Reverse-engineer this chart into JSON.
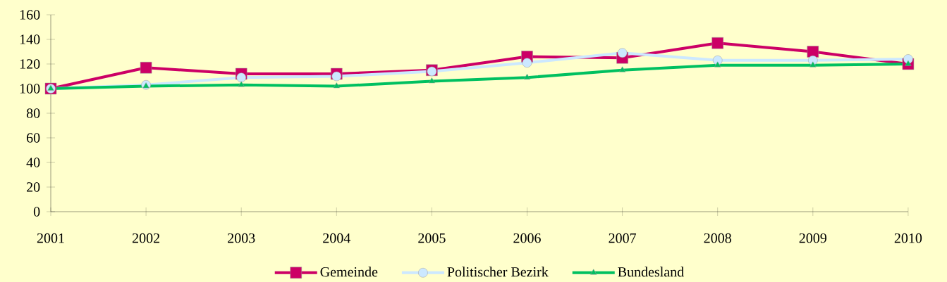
{
  "chart_data": {
    "type": "line",
    "categories": [
      "2001",
      "2002",
      "2003",
      "2004",
      "2005",
      "2006",
      "2007",
      "2008",
      "2009",
      "2010"
    ],
    "series": [
      {
        "name": "Gemeinde",
        "color": "#cc0066",
        "marker": "square",
        "values": [
          100,
          117,
          112,
          112,
          115,
          126,
          125,
          137,
          130,
          120
        ]
      },
      {
        "name": "Politischer Bezirk",
        "color": "#cce8ff",
        "marker": "circle",
        "values": [
          100,
          103,
          109,
          110,
          114,
          121,
          129,
          123,
          123,
          124
        ]
      },
      {
        "name": "Bundesland",
        "color": "#00c060",
        "marker": "triangle",
        "values": [
          100,
          102,
          103,
          102,
          106,
          109,
          115,
          119,
          119,
          120
        ]
      }
    ],
    "ylim": [
      0,
      160
    ],
    "yticks": [
      0,
      20,
      40,
      60,
      80,
      100,
      120,
      140,
      160
    ],
    "grid": false,
    "legend": "bottom"
  }
}
